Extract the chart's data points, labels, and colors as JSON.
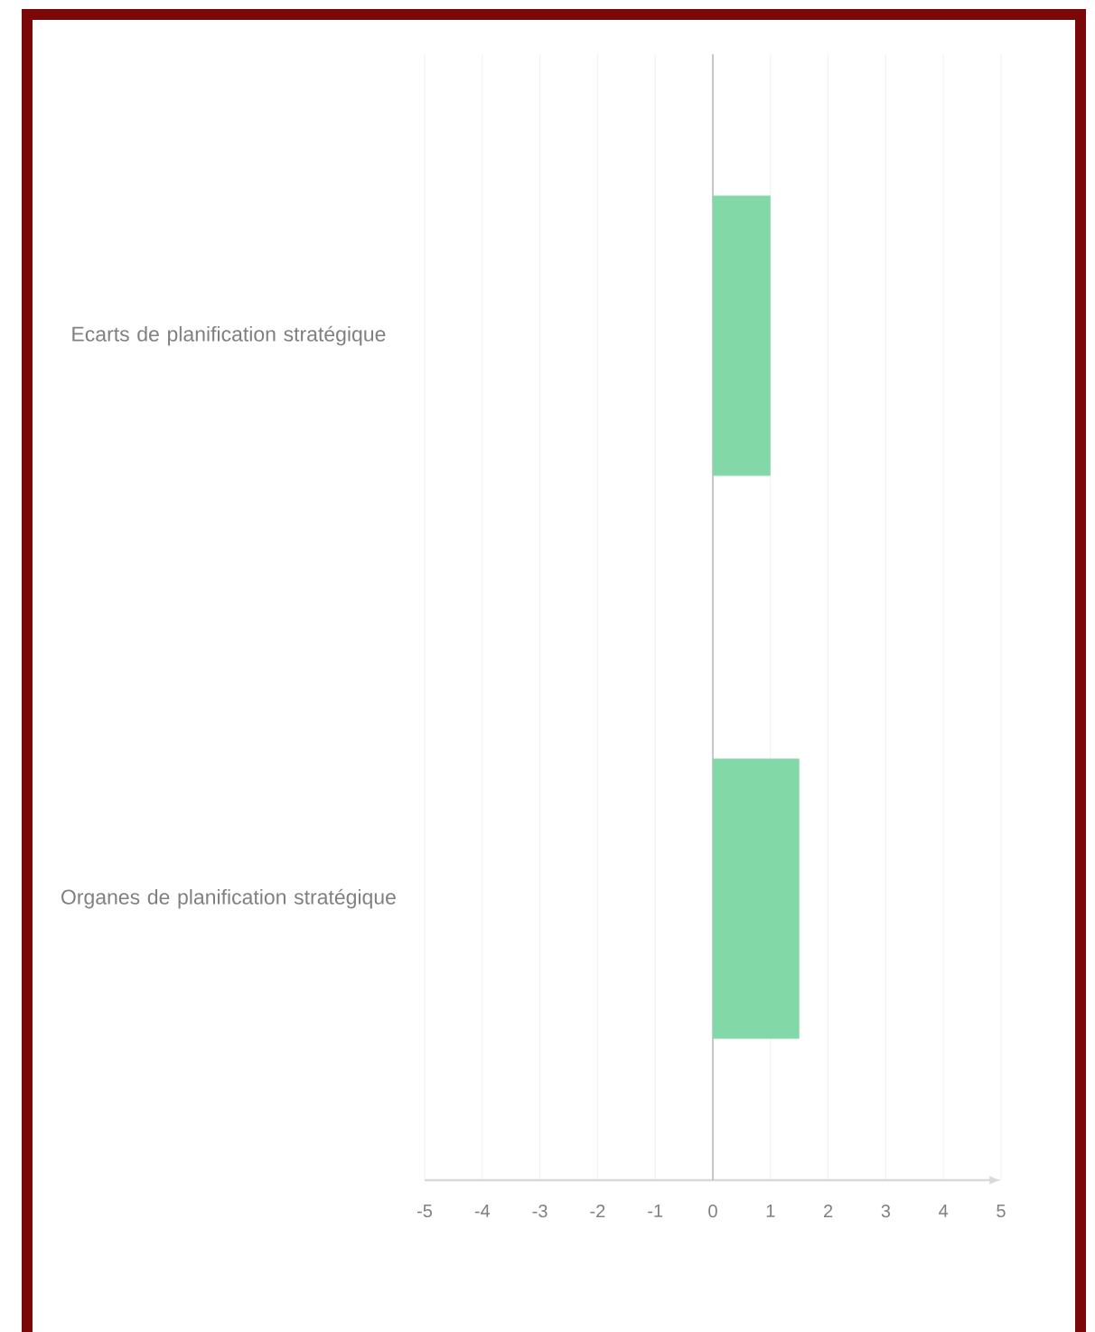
{
  "chart_data": {
    "type": "bar",
    "orientation": "horizontal",
    "categories": [
      "Ecarts de planification stratégique",
      "Organes de planification stratégique"
    ],
    "values": [
      1,
      1.5
    ],
    "color": "#82d8a7",
    "xlim": [
      -5,
      5
    ],
    "xticks": [
      -5,
      -4,
      -3,
      -2,
      -1,
      0,
      1,
      2,
      3,
      4,
      5
    ],
    "grid": "x"
  }
}
